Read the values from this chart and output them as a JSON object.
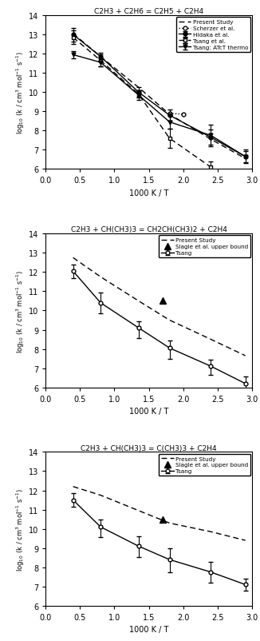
{
  "panel1": {
    "title": "C2H3 + C2H6 = C2H5 + C2H4",
    "xlabel": "1000 K / T",
    "ylabel": "log$_{10}$ (k / cm$^3$ mol$^{-1}$ s$^{-1}$)",
    "xlim": [
      0,
      3
    ],
    "ylim": [
      6,
      14
    ],
    "present_study": {
      "x": [
        0.4,
        0.8,
        1.35,
        1.8,
        2.4,
        2.9
      ],
      "y": [
        13.05,
        11.85,
        10.25,
        8.85,
        7.55,
        6.55
      ],
      "label": "Present Study"
    },
    "hidaka": {
      "x": [
        0.4,
        0.8,
        1.35,
        1.8,
        2.4,
        2.9
      ],
      "y": [
        13.0,
        11.85,
        10.0,
        8.8,
        7.65,
        6.65
      ],
      "yerr": [
        0.35,
        0.2,
        0.25,
        0.3,
        0.4,
        0.3
      ],
      "label": "Hidaka et al."
    },
    "tsang": {
      "x": [
        0.4,
        0.8,
        1.35,
        1.8,
        2.4
      ],
      "y": [
        12.85,
        11.65,
        9.9,
        7.6,
        6.1
      ],
      "yerr_lo": [
        0.35,
        0.3,
        0.2,
        0.5,
        0.5
      ],
      "yerr_hi": [
        0.35,
        0.3,
        0.2,
        0.5,
        0.3
      ],
      "label": "Tsang et al."
    },
    "scherzer": {
      "x": [
        1.8,
        2.0
      ],
      "y": [
        8.9,
        8.85
      ],
      "label": "Scherzer et al."
    },
    "tsang_atct": {
      "x": [
        0.4,
        0.8,
        1.35,
        1.8,
        2.4,
        2.9
      ],
      "y": [
        11.95,
        11.55,
        9.85,
        8.45,
        7.75,
        6.65
      ],
      "yerr": [
        0.2,
        0.2,
        0.25,
        0.35,
        0.55,
        0.35
      ],
      "label": "Tsang: ATcT thermo"
    }
  },
  "panel2": {
    "title": "C2H3 + CH(CH3)3 = CH2CH(CH3)2 + C2H4",
    "xlabel": "1000 K / T",
    "ylabel": "log$_{10}$ (k / cm$^3$ mol$^{-1}$ s$^{-1}$)",
    "xlim": [
      0,
      3
    ],
    "ylim": [
      6,
      14
    ],
    "present_study": {
      "x": [
        0.4,
        0.8,
        1.35,
        1.8,
        2.4,
        2.9
      ],
      "y": [
        12.75,
        11.75,
        10.5,
        9.5,
        8.5,
        7.65
      ],
      "label": "Present Study"
    },
    "tsang": {
      "x": [
        0.4,
        0.8,
        1.35,
        1.8,
        2.4,
        2.9
      ],
      "y": [
        12.05,
        10.4,
        9.1,
        8.05,
        7.1,
        6.2
      ],
      "yerr_lo": [
        0.35,
        0.55,
        0.55,
        0.55,
        0.45,
        0.4
      ],
      "yerr_hi": [
        0.35,
        0.55,
        0.35,
        0.4,
        0.35,
        0.35
      ],
      "label": "Tsang"
    },
    "slagle": {
      "x": [
        1.7
      ],
      "y": [
        10.5
      ],
      "label": "Slagle et al. upper bound"
    }
  },
  "panel3": {
    "title": "C2H3 + CH(CH3)3 = C(CH3)3 + C2H4",
    "xlabel": "1000 K / T",
    "ylabel": "log$_{10}$ (k / cm$^3$ mol$^{-1}$ s$^{-1}$)",
    "xlim": [
      0,
      3
    ],
    "ylim": [
      6,
      14
    ],
    "present_study": {
      "x": [
        0.4,
        0.8,
        1.35,
        1.8,
        2.4,
        2.9
      ],
      "y": [
        12.2,
        11.75,
        10.95,
        10.3,
        9.85,
        9.4
      ],
      "label": "Present Study"
    },
    "tsang": {
      "x": [
        0.4,
        0.8,
        1.35,
        1.8,
        2.4,
        2.9
      ],
      "y": [
        11.5,
        10.1,
        9.1,
        8.4,
        7.75,
        7.1
      ],
      "yerr_lo": [
        0.35,
        0.55,
        0.55,
        0.65,
        0.55,
        0.3
      ],
      "yerr_hi": [
        0.35,
        0.4,
        0.5,
        0.6,
        0.55,
        0.3
      ],
      "label": "Tsang"
    },
    "slagle": {
      "x": [
        1.7
      ],
      "y": [
        10.5
      ],
      "label": "Slagle et al. upper bound"
    }
  }
}
